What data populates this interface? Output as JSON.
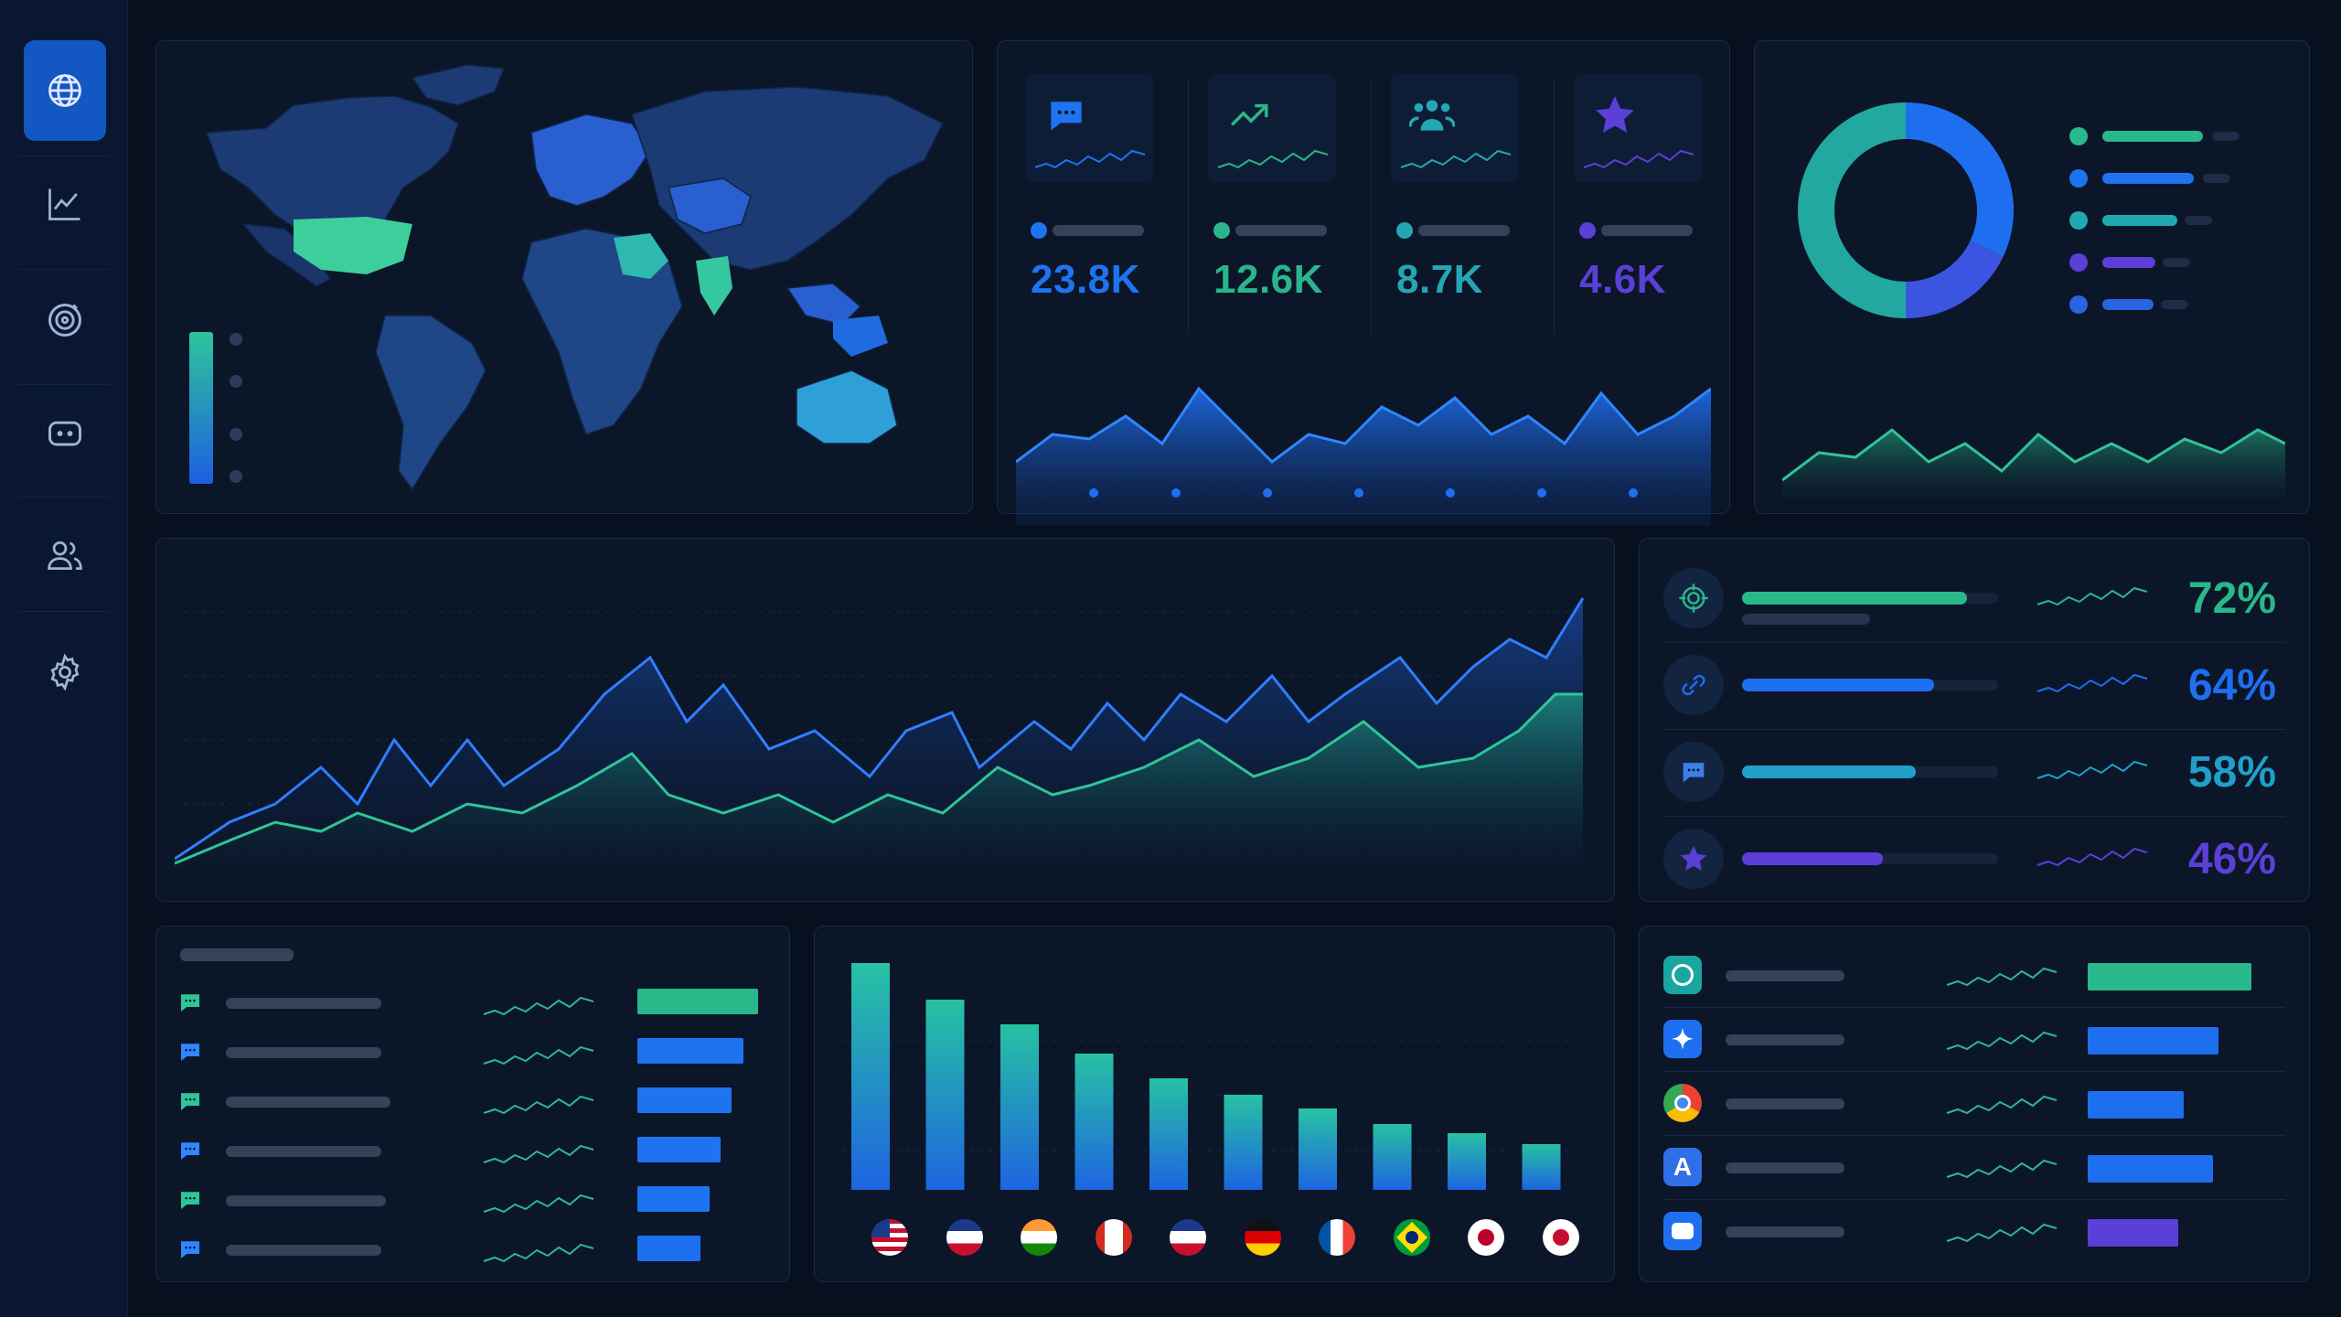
{
  "colors": {
    "accent_blue": "#1e6ff0",
    "accent_green": "#29b88a",
    "accent_teal": "#20a9b0",
    "accent_purple": "#5b3fd6",
    "background": "#07101f",
    "panel": "#0b1629"
  },
  "sidebar": {
    "items": [
      {
        "icon": "globe-icon",
        "active": true
      },
      {
        "icon": "line-chart-icon",
        "active": false
      },
      {
        "icon": "target-icon",
        "active": false
      },
      {
        "icon": "chat-icon",
        "active": false
      },
      {
        "icon": "users-icon",
        "active": false
      },
      {
        "icon": "gear-icon",
        "active": false
      }
    ]
  },
  "kpis": [
    {
      "icon": "chat-bubble-icon",
      "value": "23.8K",
      "color": "#1e74f0"
    },
    {
      "icon": "trend-up-icon",
      "value": "12.6K",
      "color": "#2bb58a"
    },
    {
      "icon": "users-icon",
      "value": "8.7K",
      "color": "#25a6b4"
    },
    {
      "icon": "star-icon",
      "value": "4.6K",
      "color": "#5b3fd6"
    }
  ],
  "donut": {
    "segments": [
      {
        "share": 0.32,
        "color": "#1e6ff0"
      },
      {
        "share": 0.18,
        "color": "#3c55e0"
      },
      {
        "share": 0.5,
        "color": "#22a8a0"
      }
    ],
    "legend_colors": [
      "#29b88a",
      "#1e74f0",
      "#20a9b0",
      "#5b3fd6",
      "#2a63e0"
    ]
  },
  "metrics": [
    {
      "icon": "target-icon",
      "value": "72%",
      "fill": 0.88,
      "color": "#29b88a"
    },
    {
      "icon": "link-icon",
      "value": "64%",
      "fill": 0.75,
      "color": "#1e6ff0"
    },
    {
      "icon": "chat-icon",
      "value": "58%",
      "fill": 0.68,
      "color": "#20a0c8"
    },
    {
      "icon": "star-icon",
      "value": "46%",
      "fill": 0.55,
      "color": "#5b3fd6"
    }
  ],
  "bar_list_left": {
    "bars": [
      1.0,
      0.88,
      0.78,
      0.69,
      0.6,
      0.52
    ],
    "colors": [
      "#29b88a",
      "#1e74f0",
      "#1e74f0",
      "#1e74f0",
      "#1e74f0",
      "#1e6ff0"
    ]
  },
  "country_bars": {
    "values": [
      100,
      84,
      73,
      60,
      49,
      42,
      36,
      29,
      25,
      20
    ],
    "flags": [
      "flag-us-icon",
      "flag-gb-icon",
      "flag-in-icon",
      "flag-ca-icon",
      "flag-au-icon",
      "flag-de-icon",
      "flag-fr-icon",
      "flag-br-icon",
      "flag-jp-icon",
      "flag-kr-icon"
    ]
  },
  "apps": {
    "items": [
      {
        "icon": "openai-icon",
        "bar": 0.85,
        "color": "#29b88a"
      },
      {
        "icon": "gemini-icon",
        "bar": 0.68,
        "color": "#1e6ff0"
      },
      {
        "icon": "chrome-icon",
        "bar": 0.5,
        "color": "#1e6ff0"
      },
      {
        "icon": "a-letter-icon",
        "letter": "A",
        "bar": 0.65,
        "color": "#1e6ff0"
      },
      {
        "icon": "robot-icon",
        "bar": 0.47,
        "color": "#5b3fd6"
      }
    ]
  }
}
